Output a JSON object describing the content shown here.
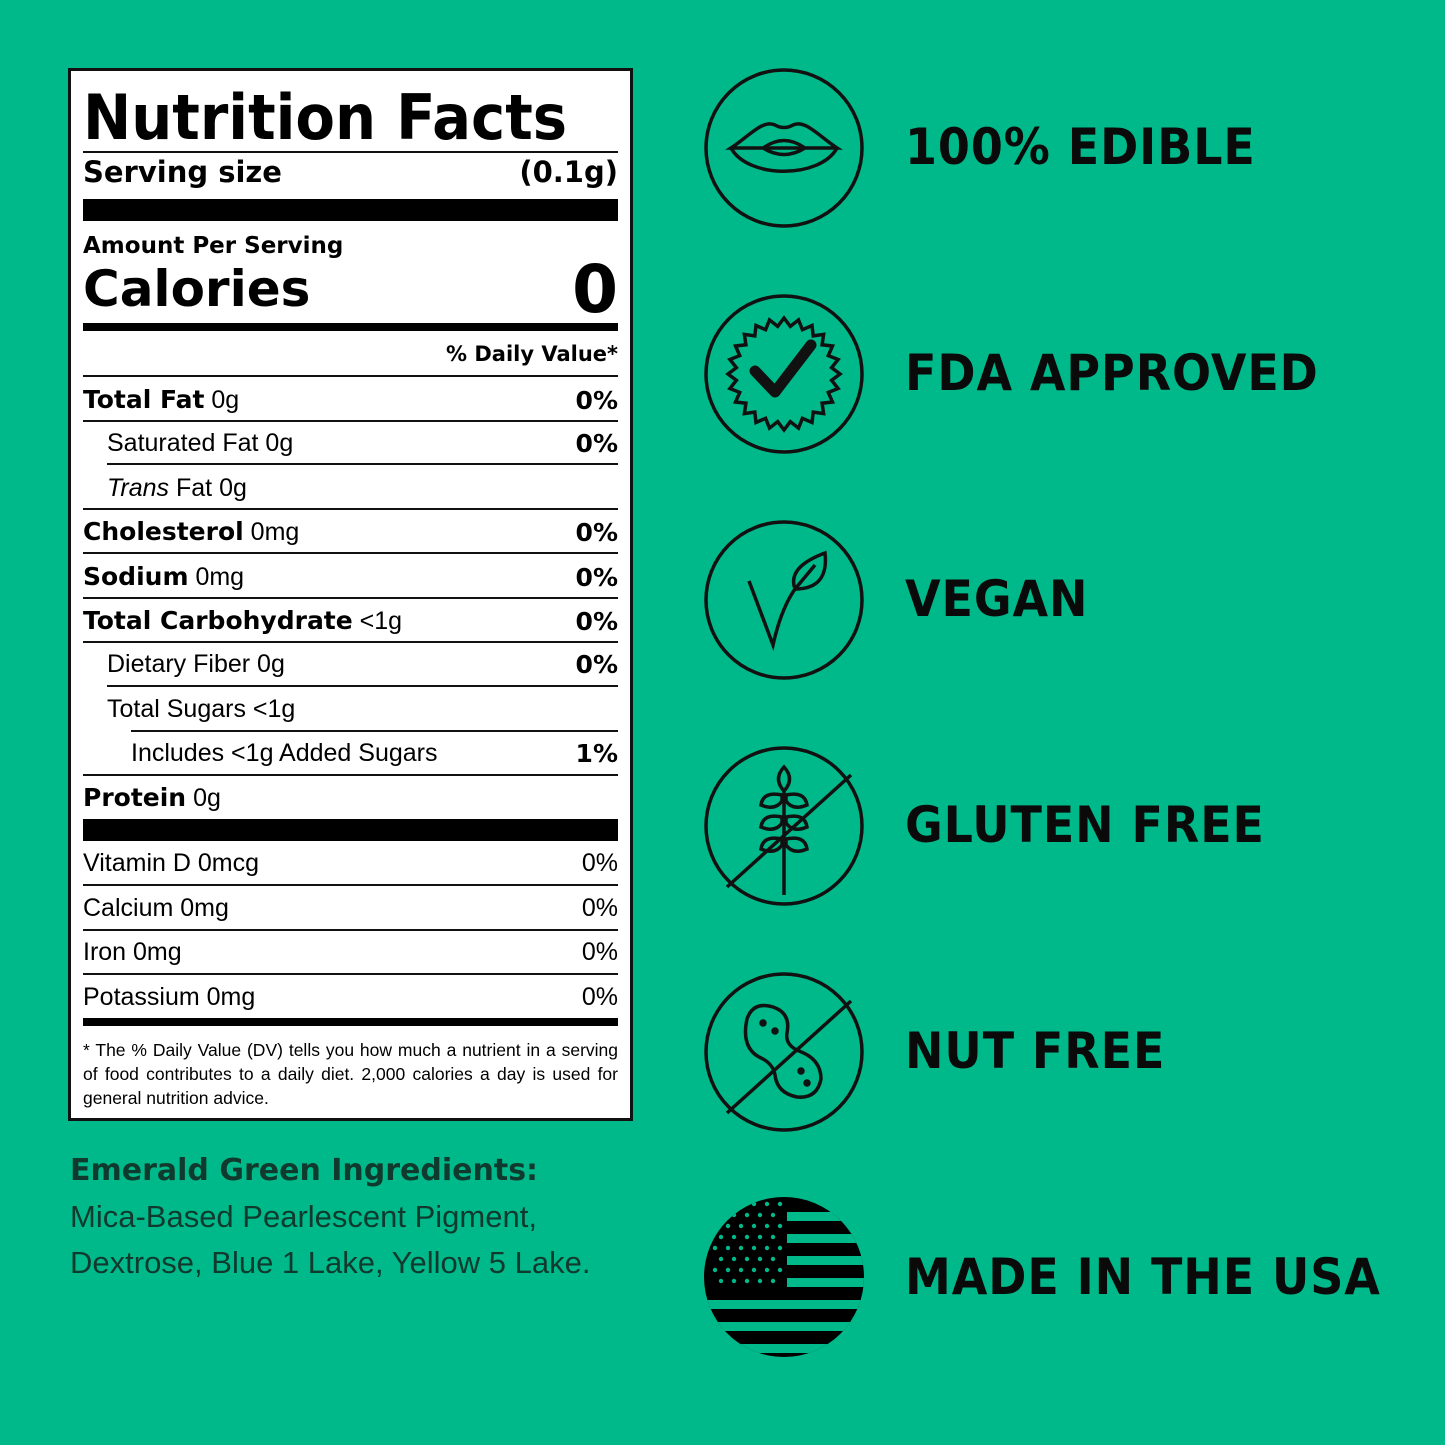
{
  "label": {
    "title": "Nutrition Facts",
    "serving_label": "Serving size",
    "serving_value": "(0.1g)",
    "amount_per_serving": "Amount Per Serving",
    "calories_label": "Calories",
    "calories_value": "0",
    "daily_value_header": "% Daily Value*",
    "nutrients": [
      {
        "name": "Total Fat",
        "amount": "0g",
        "dv": "0%"
      },
      {
        "name": "Saturated Fat 0g",
        "amount": "",
        "dv": "0%"
      },
      {
        "name_italic": "Trans",
        "name": " Fat 0g",
        "dv": ""
      },
      {
        "name": "Cholesterol",
        "amount": "0mg",
        "dv": "0%"
      },
      {
        "name": "Sodium",
        "amount": "0mg",
        "dv": "0%"
      },
      {
        "name": "Total Carbohydrate",
        "amount": "<1g",
        "dv": "0%"
      },
      {
        "name": "Dietary Fiber 0g",
        "dv": "0%"
      },
      {
        "name": "Total Sugars <1g",
        "dv": ""
      },
      {
        "name": "Includes <1g Added Sugars",
        "dv": "1%"
      },
      {
        "name": "Protein",
        "amount": "0g",
        "dv": ""
      }
    ],
    "vitamins": [
      {
        "name": "Vitamin D 0mcg",
        "dv": "0%"
      },
      {
        "name": "Calcium 0mg",
        "dv": "0%"
      },
      {
        "name": "Iron 0mg",
        "dv": "0%"
      },
      {
        "name": "Potassium 0mg",
        "dv": "0%"
      }
    ],
    "footnote": "* The % Daily Value (DV) tells you how much a nutrient in a serving of food contributes to a daily diet. 2,000 calories a day is used for general nutrition advice."
  },
  "ingredients": {
    "heading": "Emerald Green Ingredients:",
    "line1": "Mica-Based Pearlescent Pigment,",
    "line2": "Dextrose, Blue 1 Lake, Yellow 5 Lake."
  },
  "badges": [
    {
      "icon": "lips-icon",
      "label": "100% EDIBLE"
    },
    {
      "icon": "check-seal-icon",
      "label": "FDA APPROVED"
    },
    {
      "icon": "leaf-v-icon",
      "label": "VEGAN"
    },
    {
      "icon": "no-wheat-icon",
      "label": "GLUTEN FREE"
    },
    {
      "icon": "no-nut-icon",
      "label": "NUT FREE"
    },
    {
      "icon": "usa-flag-icon",
      "label": "MADE IN THE USA"
    }
  ],
  "colors": {
    "background": "#00b98a",
    "text": "#0a0a0a",
    "ingredients_text": "#103a2e"
  }
}
